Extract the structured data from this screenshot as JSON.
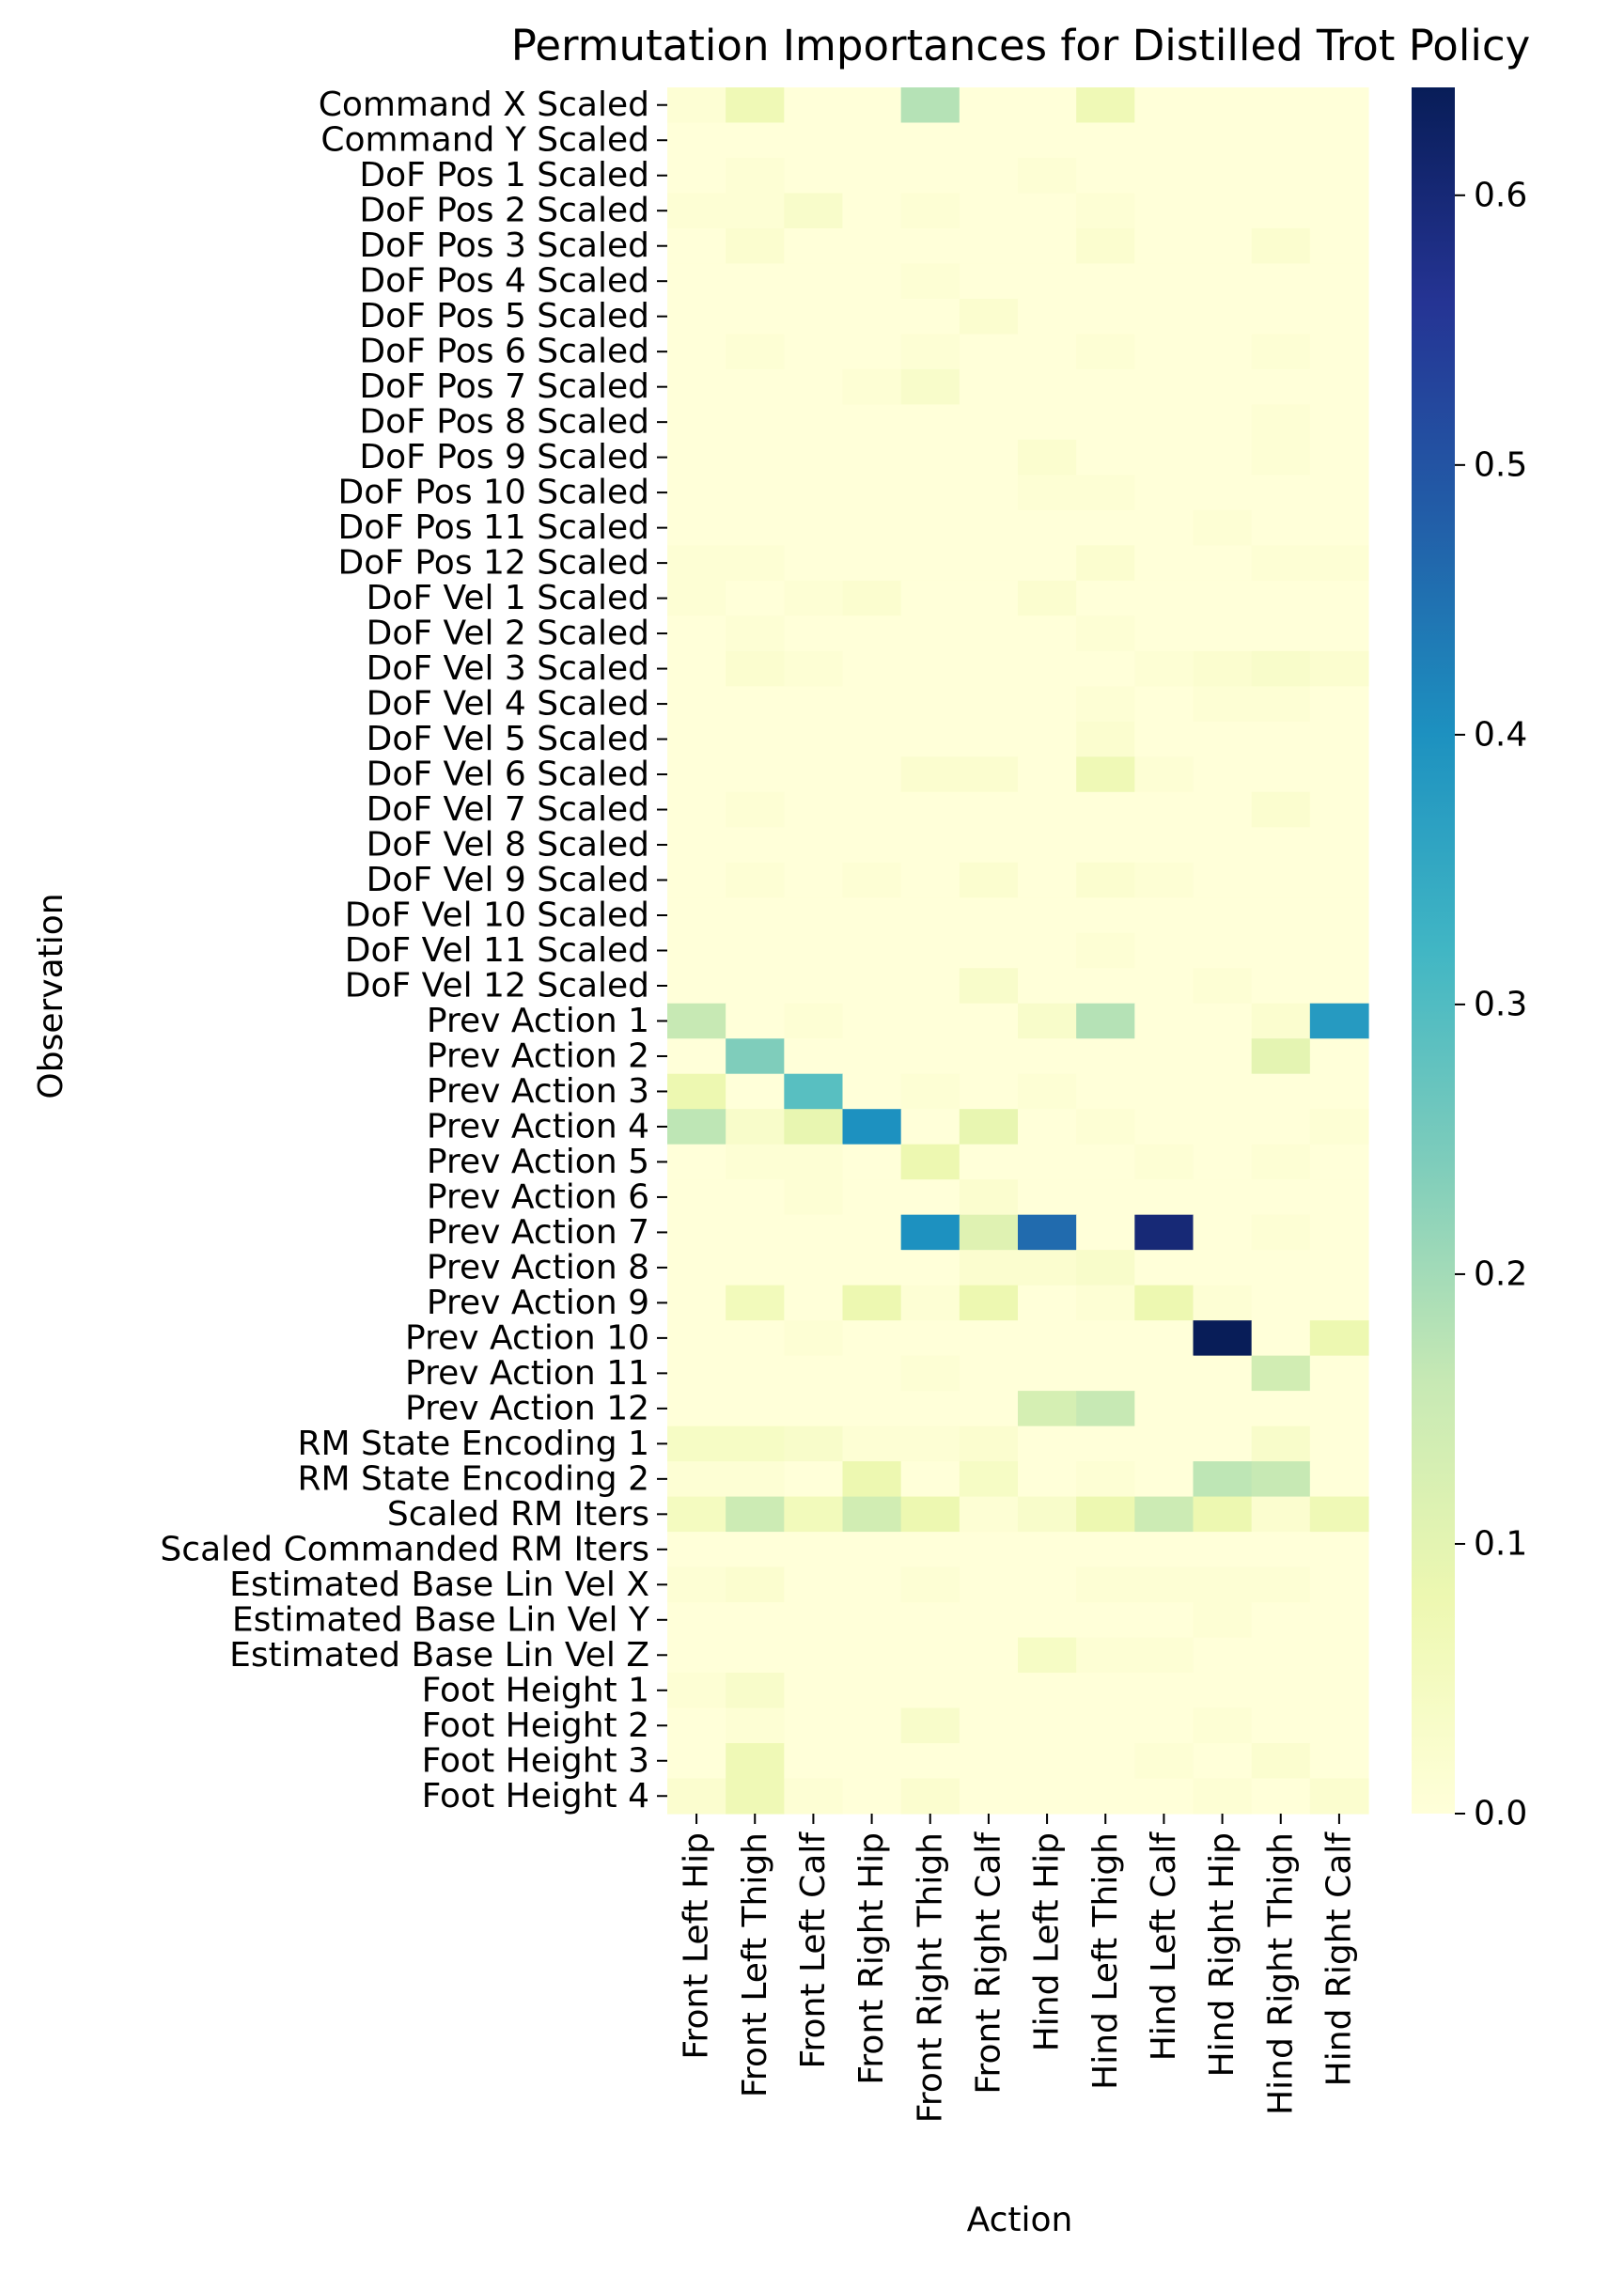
{
  "chart_data": {
    "type": "heatmap",
    "title": "Permutation Importances for Distilled Trot Policy",
    "xlabel": "Action",
    "ylabel": "Observation",
    "rows": [
      "Command X Scaled",
      "Command Y Scaled",
      "DoF Pos 1 Scaled",
      "DoF Pos 2 Scaled",
      "DoF Pos 3 Scaled",
      "DoF Pos 4 Scaled",
      "DoF Pos 5 Scaled",
      "DoF Pos 6 Scaled",
      "DoF Pos 7 Scaled",
      "DoF Pos 8 Scaled",
      "DoF Pos 9 Scaled",
      "DoF Pos 10 Scaled",
      "DoF Pos 11 Scaled",
      "DoF Pos 12 Scaled",
      "DoF Vel 1 Scaled",
      "DoF Vel 2 Scaled",
      "DoF Vel 3 Scaled",
      "DoF Vel 4 Scaled",
      "DoF Vel 5 Scaled",
      "DoF Vel 6 Scaled",
      "DoF Vel 7 Scaled",
      "DoF Vel 8 Scaled",
      "DoF Vel 9 Scaled",
      "DoF Vel 10 Scaled",
      "DoF Vel 11 Scaled",
      "DoF Vel 12 Scaled",
      "Prev Action 1",
      "Prev Action 2",
      "Prev Action 3",
      "Prev Action 4",
      "Prev Action 5",
      "Prev Action 6",
      "Prev Action 7",
      "Prev Action 8",
      "Prev Action 9",
      "Prev Action 10",
      "Prev Action 11",
      "Prev Action 12",
      "RM State Encoding 1",
      "RM State Encoding 2",
      "Scaled RM Iters",
      "Scaled Commanded RM Iters",
      "Estimated Base Lin Vel X",
      "Estimated Base Lin Vel Y",
      "Estimated Base Lin Vel Z",
      "Foot Height 1",
      "Foot Height 2",
      "Foot Height 3",
      "Foot Height 4"
    ],
    "columns": [
      "Front Left Hip",
      "Front Left Thigh",
      "Front Left Calf",
      "Front Right Hip",
      "Front Right Thigh",
      "Front Right Calf",
      "Hind Left Hip",
      "Hind Left Thigh",
      "Hind Left Calf",
      "Hind Right Hip",
      "Hind Right Thigh",
      "Hind Right Calf"
    ],
    "values": [
      [
        0.01,
        0.07,
        0.0,
        0.0,
        0.18,
        0.0,
        0.0,
        0.07,
        0.0,
        0.0,
        0.0,
        0.0
      ],
      [
        0.0,
        0.0,
        0.0,
        0.0,
        0.0,
        0.0,
        0.0,
        0.0,
        0.0,
        0.0,
        0.0,
        0.0
      ],
      [
        0.0,
        0.01,
        0.0,
        0.0,
        0.0,
        0.0,
        0.01,
        0.0,
        0.0,
        0.0,
        0.0,
        0.0
      ],
      [
        0.01,
        0.01,
        0.03,
        0.0,
        0.01,
        0.0,
        0.0,
        0.01,
        0.0,
        0.0,
        0.0,
        0.0
      ],
      [
        0.0,
        0.02,
        0.0,
        0.0,
        0.0,
        0.0,
        0.0,
        0.02,
        0.0,
        0.0,
        0.02,
        0.0
      ],
      [
        0.0,
        0.0,
        0.0,
        0.0,
        0.01,
        0.0,
        0.0,
        0.0,
        0.0,
        0.0,
        0.0,
        0.0
      ],
      [
        0.0,
        0.0,
        0.0,
        0.0,
        0.0,
        0.02,
        0.0,
        0.0,
        0.0,
        0.0,
        0.0,
        0.0
      ],
      [
        0.0,
        0.01,
        0.0,
        0.0,
        0.01,
        0.0,
        0.0,
        0.01,
        0.0,
        0.0,
        0.01,
        0.0
      ],
      [
        0.0,
        0.0,
        0.0,
        0.01,
        0.03,
        0.0,
        0.0,
        0.0,
        0.0,
        0.0,
        0.0,
        0.0
      ],
      [
        0.0,
        0.0,
        0.0,
        0.0,
        0.0,
        0.0,
        0.0,
        0.0,
        0.0,
        0.0,
        0.01,
        0.0
      ],
      [
        0.0,
        0.0,
        0.0,
        0.0,
        0.0,
        0.0,
        0.02,
        0.0,
        0.0,
        0.0,
        0.01,
        0.0
      ],
      [
        0.0,
        0.0,
        0.0,
        0.0,
        0.0,
        0.0,
        0.01,
        0.01,
        0.0,
        0.0,
        0.0,
        0.0
      ],
      [
        0.0,
        0.0,
        0.0,
        0.0,
        0.0,
        0.0,
        0.0,
        0.0,
        0.0,
        0.01,
        0.0,
        0.0
      ],
      [
        0.01,
        0.01,
        0.0,
        0.0,
        0.0,
        0.0,
        0.0,
        0.02,
        0.0,
        0.0,
        0.01,
        0.01
      ],
      [
        0.01,
        0.0,
        0.01,
        0.02,
        0.0,
        0.0,
        0.02,
        0.0,
        0.0,
        0.0,
        0.0,
        0.0
      ],
      [
        0.0,
        0.01,
        0.0,
        0.0,
        0.0,
        0.0,
        0.0,
        0.01,
        0.0,
        0.0,
        0.0,
        0.0
      ],
      [
        0.0,
        0.02,
        0.01,
        0.0,
        0.0,
        0.0,
        0.0,
        0.0,
        0.01,
        0.02,
        0.03,
        0.02
      ],
      [
        0.0,
        0.0,
        0.0,
        0.0,
        0.0,
        0.0,
        0.0,
        0.01,
        0.0,
        0.01,
        0.01,
        0.0
      ],
      [
        0.0,
        0.0,
        0.0,
        0.0,
        0.0,
        0.0,
        0.0,
        0.02,
        0.0,
        0.0,
        0.0,
        0.0
      ],
      [
        0.0,
        0.0,
        0.0,
        0.0,
        0.02,
        0.02,
        0.0,
        0.07,
        0.01,
        0.0,
        0.0,
        0.0
      ],
      [
        0.0,
        0.01,
        0.0,
        0.0,
        0.0,
        0.0,
        0.0,
        0.0,
        0.0,
        0.0,
        0.02,
        0.0
      ],
      [
        0.0,
        0.0,
        0.0,
        0.0,
        0.0,
        0.0,
        0.0,
        0.0,
        0.0,
        0.0,
        0.0,
        0.0
      ],
      [
        0.0,
        0.01,
        0.0,
        0.01,
        0.0,
        0.02,
        0.0,
        0.02,
        0.01,
        0.0,
        0.0,
        0.0
      ],
      [
        0.0,
        0.0,
        0.0,
        0.0,
        0.0,
        0.0,
        0.0,
        0.0,
        0.0,
        0.0,
        0.0,
        0.0
      ],
      [
        0.0,
        0.0,
        0.0,
        0.0,
        0.0,
        0.0,
        0.0,
        0.01,
        0.0,
        0.0,
        0.0,
        0.0
      ],
      [
        0.0,
        0.0,
        0.0,
        0.0,
        0.0,
        0.03,
        0.0,
        0.0,
        0.0,
        0.01,
        0.0,
        0.0
      ],
      [
        0.16,
        0.0,
        0.01,
        0.0,
        0.0,
        0.0,
        0.03,
        0.18,
        0.0,
        0.0,
        0.02,
        0.38
      ],
      [
        0.0,
        0.24,
        0.0,
        0.0,
        0.0,
        0.0,
        0.0,
        0.0,
        0.0,
        0.0,
        0.1,
        0.0
      ],
      [
        0.08,
        0.0,
        0.29,
        0.0,
        0.01,
        0.0,
        0.01,
        0.0,
        0.0,
        0.0,
        0.0,
        0.0
      ],
      [
        0.17,
        0.03,
        0.09,
        0.4,
        0.0,
        0.09,
        0.0,
        0.01,
        0.0,
        0.0,
        0.0,
        0.01
      ],
      [
        0.0,
        0.01,
        0.01,
        0.0,
        0.08,
        0.0,
        0.0,
        0.0,
        0.01,
        0.0,
        0.01,
        0.0
      ],
      [
        0.0,
        0.0,
        0.01,
        0.0,
        0.0,
        0.02,
        0.0,
        0.0,
        0.0,
        0.0,
        0.0,
        0.0
      ],
      [
        0.0,
        0.0,
        0.0,
        0.0,
        0.4,
        0.11,
        0.46,
        0.0,
        0.6,
        0.0,
        0.01,
        0.0
      ],
      [
        0.0,
        0.0,
        0.0,
        0.0,
        0.0,
        0.02,
        0.02,
        0.03,
        0.0,
        0.0,
        0.0,
        0.0
      ],
      [
        0.0,
        0.06,
        0.0,
        0.08,
        0.01,
        0.08,
        0.0,
        0.01,
        0.08,
        0.01,
        0.0,
        0.0
      ],
      [
        0.0,
        0.0,
        0.01,
        0.0,
        0.0,
        0.0,
        0.0,
        0.0,
        0.0,
        0.64,
        0.0,
        0.08
      ],
      [
        0.0,
        0.0,
        0.0,
        0.0,
        0.01,
        0.0,
        0.0,
        0.0,
        0.0,
        0.0,
        0.14,
        0.0
      ],
      [
        0.0,
        0.0,
        0.0,
        0.0,
        0.0,
        0.0,
        0.13,
        0.16,
        0.0,
        0.0,
        0.0,
        0.0
      ],
      [
        0.04,
        0.04,
        0.03,
        0.01,
        0.01,
        0.02,
        0.0,
        0.0,
        0.0,
        0.0,
        0.03,
        0.0
      ],
      [
        0.01,
        0.01,
        0.0,
        0.08,
        0.0,
        0.04,
        0.0,
        0.01,
        0.0,
        0.17,
        0.16,
        0.0
      ],
      [
        0.05,
        0.15,
        0.06,
        0.14,
        0.08,
        0.01,
        0.03,
        0.08,
        0.15,
        0.08,
        0.02,
        0.07
      ],
      [
        0.0,
        0.0,
        0.0,
        0.0,
        0.0,
        0.0,
        0.0,
        0.0,
        0.0,
        0.0,
        0.0,
        0.0
      ],
      [
        0.01,
        0.02,
        0.0,
        0.0,
        0.01,
        0.0,
        0.0,
        0.01,
        0.01,
        0.01,
        0.01,
        0.0
      ],
      [
        0.0,
        0.0,
        0.0,
        0.0,
        0.0,
        0.0,
        0.0,
        0.0,
        0.0,
        0.01,
        0.0,
        0.0
      ],
      [
        0.0,
        0.0,
        0.0,
        0.0,
        0.0,
        0.0,
        0.04,
        0.01,
        0.01,
        0.0,
        0.0,
        0.0
      ],
      [
        0.01,
        0.03,
        0.0,
        0.0,
        0.0,
        0.0,
        0.0,
        0.0,
        0.0,
        0.0,
        0.0,
        0.0
      ],
      [
        0.0,
        0.01,
        0.0,
        0.0,
        0.03,
        0.0,
        0.0,
        0.0,
        0.0,
        0.01,
        0.0,
        0.0
      ],
      [
        0.0,
        0.07,
        0.0,
        0.0,
        0.0,
        0.0,
        0.0,
        0.0,
        0.01,
        0.0,
        0.02,
        0.0
      ],
      [
        0.02,
        0.07,
        0.01,
        0.0,
        0.02,
        0.0,
        0.0,
        0.0,
        0.0,
        0.01,
        0.0,
        0.02
      ]
    ],
    "colorbar": {
      "range": [
        0.0,
        0.64
      ],
      "ticks": [
        "0.0",
        "0.1",
        "0.2",
        "0.3",
        "0.4",
        "0.5",
        "0.6"
      ],
      "colormap": [
        "#ffffd9",
        "#edf8b1",
        "#c7e9b4",
        "#7fcdbb",
        "#41b6c4",
        "#1d91c0",
        "#225ea8",
        "#253494",
        "#081d58"
      ]
    }
  }
}
